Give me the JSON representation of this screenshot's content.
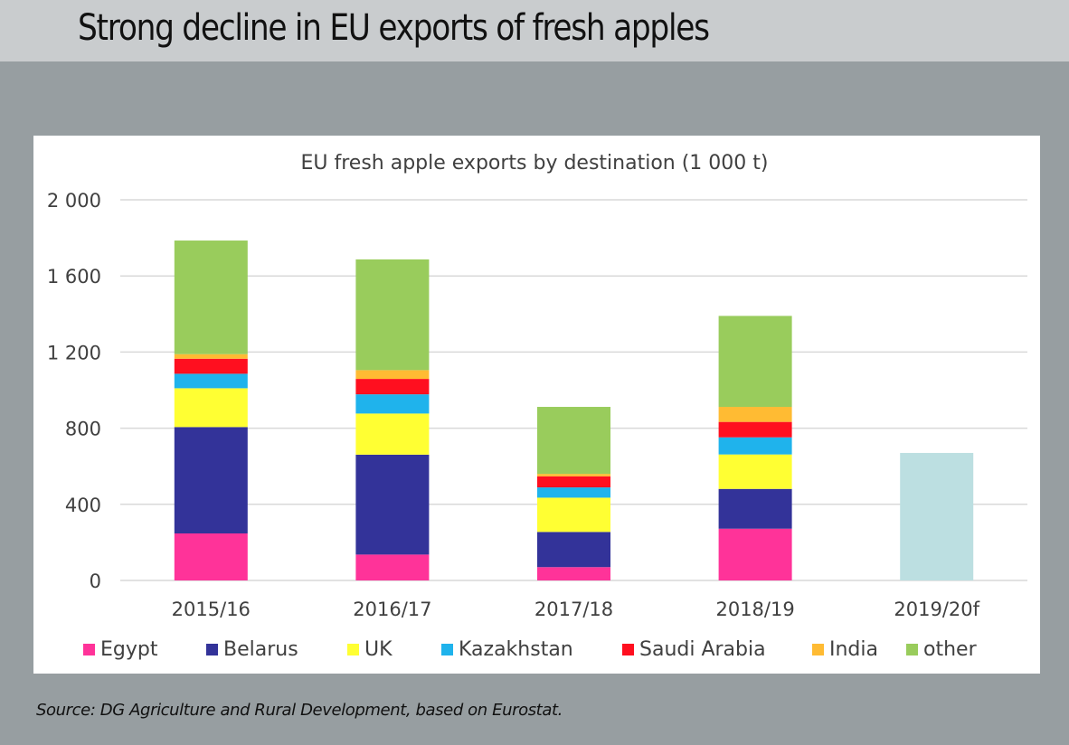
{
  "header": {
    "title": "Strong decline in EU exports of fresh apples"
  },
  "source": "Source: DG Agriculture and Rural Development, based on Eurostat.",
  "chart_data": {
    "type": "bar",
    "stacked": true,
    "title": "EU fresh apple exports by destination (1 000 t)",
    "xlabel": "",
    "ylabel": "",
    "ylim": [
      0,
      2000
    ],
    "yticks": [
      0,
      400,
      800,
      1200,
      1600,
      2000
    ],
    "ytick_labels": [
      "0",
      "400",
      "800",
      "1 200",
      "1 600",
      "2 000"
    ],
    "grid": true,
    "legend_position": "bottom",
    "categories": [
      "2015/16",
      "2016/17",
      "2017/18",
      "2018/19",
      "2019/20f"
    ],
    "series": [
      {
        "name": "Egypt",
        "color": "#ff3399",
        "values": [
          247,
          136,
          70,
          272,
          null
        ]
      },
      {
        "name": "Belarus",
        "color": "#333399",
        "values": [
          559,
          525,
          185,
          209,
          null
        ]
      },
      {
        "name": "UK",
        "color": "#ffff33",
        "values": [
          204,
          216,
          180,
          181,
          null
        ]
      },
      {
        "name": "Kazakhstan",
        "color": "#1fb3ec",
        "values": [
          76,
          101,
          54,
          90,
          null
        ]
      },
      {
        "name": "Saudi Arabia",
        "color": "#ff0f1f",
        "values": [
          79,
          81,
          58,
          81,
          null
        ]
      },
      {
        "name": "India",
        "color": "#ffbb33",
        "values": [
          24,
          46,
          13,
          79,
          null
        ]
      },
      {
        "name": "other",
        "color": "#99cc5c",
        "values": [
          597,
          582,
          352,
          478,
          null
        ]
      },
      {
        "name": "forecast total",
        "color": "#bcdfe1",
        "values": [
          null,
          null,
          null,
          null,
          670
        ],
        "in_legend": false
      }
    ],
    "totals": [
      1786,
      1688,
      912,
      1390,
      670
    ]
  }
}
